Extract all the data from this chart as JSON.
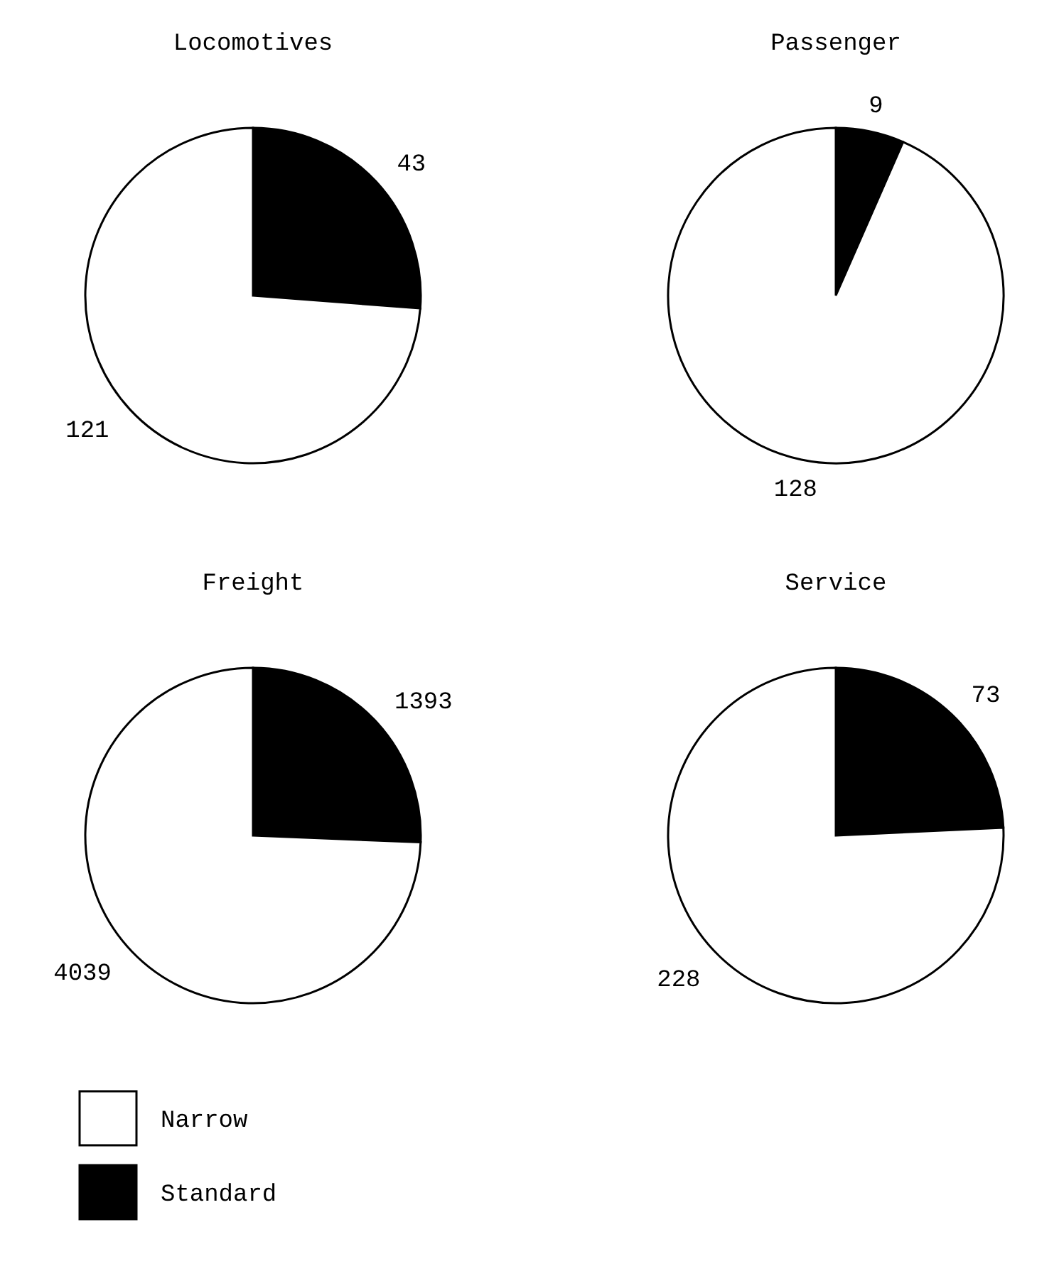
{
  "chart_data": [
    {
      "type": "pie",
      "title": "Locomotives",
      "categories": [
        "Narrow",
        "Standard"
      ],
      "values": [
        121,
        43
      ],
      "colors": [
        "#ffffff",
        "#000000"
      ],
      "data_labels": true,
      "legend": "bottom left"
    },
    {
      "type": "pie",
      "title": "Passenger",
      "values": [
        128,
        9
      ],
      "colors": [
        "#ffffff",
        "#000000"
      ],
      "data_labels": true
    },
    {
      "type": "pie",
      "title": "Freight",
      "values": [
        4039,
        1393
      ],
      "colors": [
        "#ffffff",
        "#000000"
      ],
      "data_labels": true
    },
    {
      "type": "pie",
      "title": "Service",
      "values": [
        228,
        73
      ],
      "colors": [
        "#ffffff",
        "#000000"
      ],
      "data_labels": true
    }
  ]
}
